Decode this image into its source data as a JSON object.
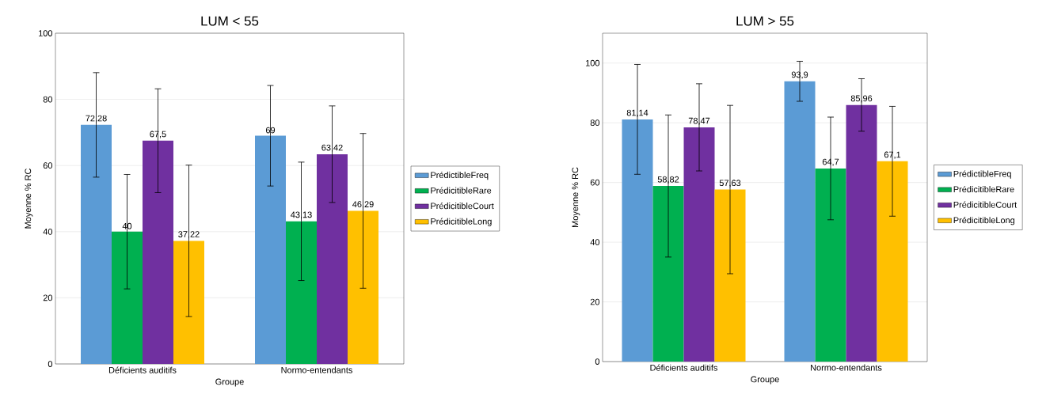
{
  "chart_data": [
    {
      "type": "bar",
      "title": "LUM < 55",
      "xlabel": "Groupe",
      "ylabel": "Moyenne % RC",
      "categories": [
        "Déficients auditifs",
        "Normo-entendants"
      ],
      "ylim": [
        0,
        100
      ],
      "yticks": [
        0,
        20,
        40,
        60,
        80,
        100
      ],
      "grid": "y",
      "legend": "right",
      "series": [
        {
          "name": "PrédictibleFreq",
          "color": "#5b9bd5",
          "values": [
            72.28,
            69
          ],
          "errors": [
            15.8,
            15.2
          ],
          "value_labels": [
            "72,28",
            "69"
          ]
        },
        {
          "name": "PrédicitibleRare",
          "color": "#00b050",
          "values": [
            40,
            43.13
          ],
          "errors": [
            17.3,
            17.9
          ],
          "value_labels": [
            "40",
            "43,13"
          ]
        },
        {
          "name": "PrédicitibleCourt",
          "color": "#7030a0",
          "values": [
            67.5,
            63.42
          ],
          "errors": [
            15.7,
            14.6
          ],
          "value_labels": [
            "67,5",
            "63,42"
          ]
        },
        {
          "name": "PrédicitibleLong",
          "color": "#ffc000",
          "values": [
            37.22,
            46.29
          ],
          "errors": [
            22.9,
            23.4
          ],
          "value_labels": [
            "37,22",
            "46,29"
          ]
        }
      ]
    },
    {
      "type": "bar",
      "title": "LUM > 55",
      "xlabel": "Groupe",
      "ylabel": "Moyenne % RC",
      "categories": [
        "Déficients auditifs",
        "Normo-entendants"
      ],
      "ylim": [
        0,
        110
      ],
      "yticks": [
        0,
        20,
        40,
        60,
        80,
        100
      ],
      "grid": "y",
      "legend": "right",
      "series": [
        {
          "name": "PrédictibleFreq",
          "color": "#5b9bd5",
          "values": [
            81.14,
            93.9
          ],
          "errors": [
            18.4,
            6.7
          ],
          "value_labels": [
            "81,14",
            "93,9"
          ]
        },
        {
          "name": "PrédicitibleRare",
          "color": "#00b050",
          "values": [
            58.82,
            64.7
          ],
          "errors": [
            23.8,
            17.2
          ],
          "value_labels": [
            "58,82",
            "64,7"
          ]
        },
        {
          "name": "PrédicitibleCourt",
          "color": "#7030a0",
          "values": [
            78.47,
            85.96
          ],
          "errors": [
            14.6,
            8.8
          ],
          "value_labels": [
            "78,47",
            "85,96"
          ]
        },
        {
          "name": "PrédicitibleLong",
          "color": "#ffc000",
          "values": [
            57.63,
            67.1
          ],
          "errors": [
            28.2,
            18.4
          ],
          "value_labels": [
            "57,63",
            "67,1"
          ]
        }
      ]
    }
  ]
}
